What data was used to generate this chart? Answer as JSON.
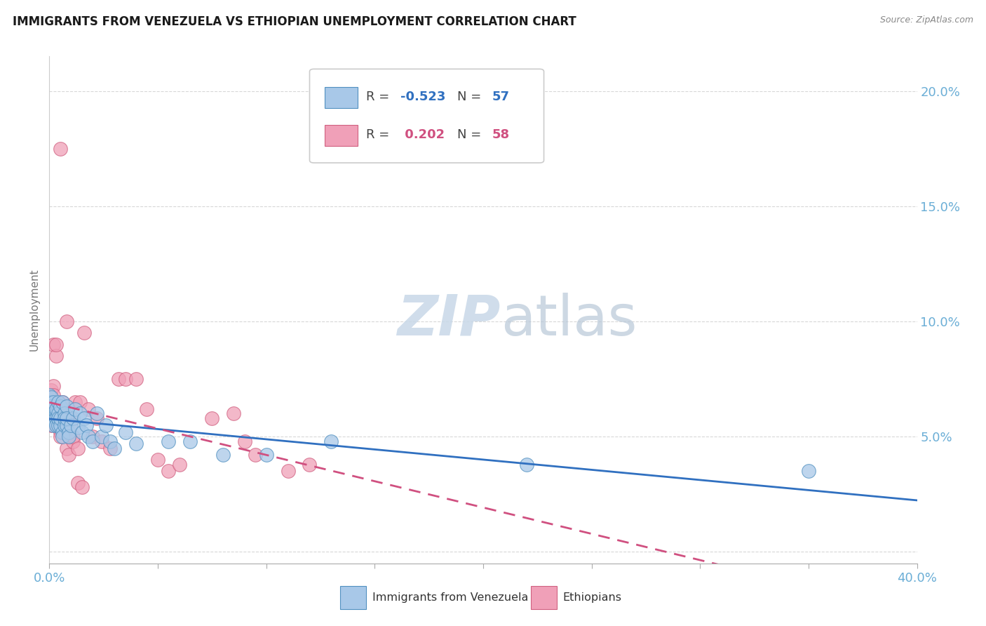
{
  "title": "IMMIGRANTS FROM VENEZUELA VS ETHIOPIAN UNEMPLOYMENT CORRELATION CHART",
  "source": "Source: ZipAtlas.com",
  "ylabel": "Unemployment",
  "xlim": [
    0.0,
    0.4
  ],
  "ylim": [
    -0.005,
    0.215
  ],
  "yticks": [
    0.0,
    0.05,
    0.1,
    0.15,
    0.2
  ],
  "ytick_labels": [
    "",
    "5.0%",
    "10.0%",
    "15.0%",
    "20.0%"
  ],
  "background_color": "#ffffff",
  "grid_color": "#d8d8d8",
  "right_axis_color": "#6baed6",
  "venezuela_color": "#a8c8e8",
  "venezuela_edge": "#5090c0",
  "ethiopia_color": "#f0a0b8",
  "ethiopia_edge": "#d06080",
  "trend_venezuela_color": "#3070c0",
  "trend_ethiopia_color": "#d05080",
  "watermark_color": "#c8d8e8",
  "legend_box_color": "#cccccc",
  "venezuela_r": "-0.523",
  "venezuela_n": "57",
  "ethiopia_r": "0.202",
  "ethiopia_n": "58",
  "venezuela_points": [
    [
      0.0,
      0.068
    ],
    [
      0.0,
      0.065
    ],
    [
      0.001,
      0.067
    ],
    [
      0.001,
      0.063
    ],
    [
      0.001,
      0.06
    ],
    [
      0.001,
      0.058
    ],
    [
      0.002,
      0.062
    ],
    [
      0.002,
      0.065
    ],
    [
      0.002,
      0.06
    ],
    [
      0.002,
      0.057
    ],
    [
      0.002,
      0.055
    ],
    [
      0.003,
      0.06
    ],
    [
      0.003,
      0.062
    ],
    [
      0.003,
      0.058
    ],
    [
      0.003,
      0.055
    ],
    [
      0.004,
      0.065
    ],
    [
      0.004,
      0.06
    ],
    [
      0.004,
      0.055
    ],
    [
      0.004,
      0.058
    ],
    [
      0.005,
      0.063
    ],
    [
      0.005,
      0.055
    ],
    [
      0.005,
      0.058
    ],
    [
      0.006,
      0.052
    ],
    [
      0.006,
      0.05
    ],
    [
      0.006,
      0.065
    ],
    [
      0.007,
      0.06
    ],
    [
      0.007,
      0.055
    ],
    [
      0.007,
      0.058
    ],
    [
      0.008,
      0.063
    ],
    [
      0.008,
      0.055
    ],
    [
      0.008,
      0.058
    ],
    [
      0.009,
      0.052
    ],
    [
      0.009,
      0.05
    ],
    [
      0.01,
      0.055
    ],
    [
      0.011,
      0.058
    ],
    [
      0.012,
      0.062
    ],
    [
      0.013,
      0.054
    ],
    [
      0.014,
      0.06
    ],
    [
      0.015,
      0.052
    ],
    [
      0.016,
      0.058
    ],
    [
      0.017,
      0.055
    ],
    [
      0.018,
      0.05
    ],
    [
      0.02,
      0.048
    ],
    [
      0.022,
      0.06
    ],
    [
      0.024,
      0.05
    ],
    [
      0.026,
      0.055
    ],
    [
      0.028,
      0.048
    ],
    [
      0.03,
      0.045
    ],
    [
      0.035,
      0.052
    ],
    [
      0.04,
      0.047
    ],
    [
      0.055,
      0.048
    ],
    [
      0.065,
      0.048
    ],
    [
      0.08,
      0.042
    ],
    [
      0.1,
      0.042
    ],
    [
      0.13,
      0.048
    ],
    [
      0.22,
      0.038
    ],
    [
      0.35,
      0.035
    ]
  ],
  "ethiopia_points": [
    [
      0.0,
      0.065
    ],
    [
      0.0,
      0.062
    ],
    [
      0.001,
      0.07
    ],
    [
      0.001,
      0.06
    ],
    [
      0.001,
      0.055
    ],
    [
      0.001,
      0.058
    ],
    [
      0.002,
      0.072
    ],
    [
      0.002,
      0.068
    ],
    [
      0.002,
      0.06
    ],
    [
      0.002,
      0.09
    ],
    [
      0.003,
      0.085
    ],
    [
      0.003,
      0.09
    ],
    [
      0.003,
      0.062
    ],
    [
      0.003,
      0.058
    ],
    [
      0.004,
      0.055
    ],
    [
      0.004,
      0.06
    ],
    [
      0.004,
      0.055
    ],
    [
      0.005,
      0.052
    ],
    [
      0.005,
      0.05
    ],
    [
      0.005,
      0.175
    ],
    [
      0.006,
      0.058
    ],
    [
      0.006,
      0.062
    ],
    [
      0.006,
      0.065
    ],
    [
      0.007,
      0.06
    ],
    [
      0.007,
      0.058
    ],
    [
      0.007,
      0.052
    ],
    [
      0.008,
      0.1
    ],
    [
      0.008,
      0.045
    ],
    [
      0.009,
      0.042
    ],
    [
      0.009,
      0.05
    ],
    [
      0.01,
      0.055
    ],
    [
      0.01,
      0.058
    ],
    [
      0.011,
      0.048
    ],
    [
      0.011,
      0.05
    ],
    [
      0.012,
      0.065
    ],
    [
      0.013,
      0.045
    ],
    [
      0.013,
      0.03
    ],
    [
      0.014,
      0.065
    ],
    [
      0.015,
      0.028
    ],
    [
      0.016,
      0.095
    ],
    [
      0.018,
      0.062
    ],
    [
      0.02,
      0.05
    ],
    [
      0.022,
      0.058
    ],
    [
      0.024,
      0.048
    ],
    [
      0.028,
      0.045
    ],
    [
      0.032,
      0.075
    ],
    [
      0.035,
      0.075
    ],
    [
      0.04,
      0.075
    ],
    [
      0.045,
      0.062
    ],
    [
      0.05,
      0.04
    ],
    [
      0.055,
      0.035
    ],
    [
      0.06,
      0.038
    ],
    [
      0.075,
      0.058
    ],
    [
      0.085,
      0.06
    ],
    [
      0.09,
      0.048
    ],
    [
      0.095,
      0.042
    ],
    [
      0.11,
      0.035
    ],
    [
      0.12,
      0.038
    ]
  ]
}
